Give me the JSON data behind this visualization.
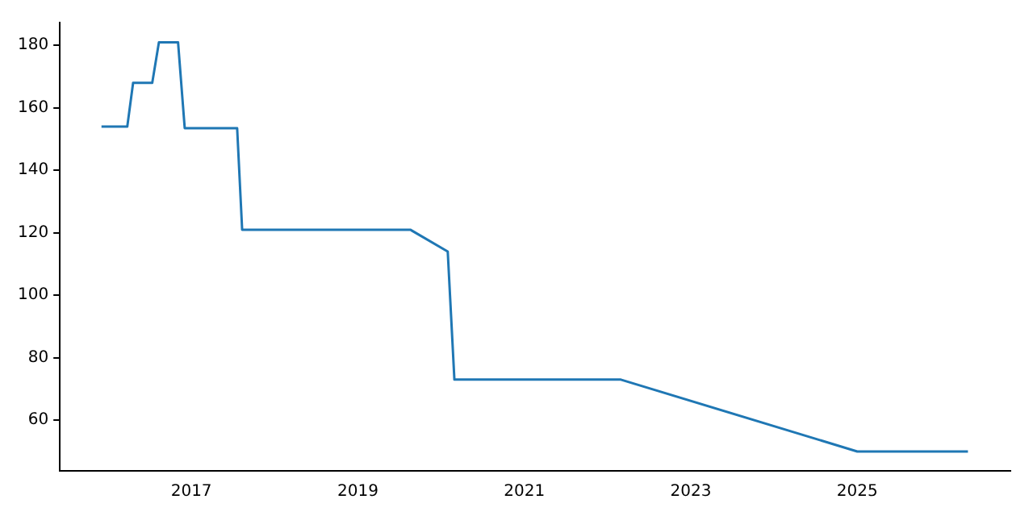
{
  "chart_data": {
    "type": "line",
    "x": [
      2015.92,
      2016.23,
      2016.3,
      2016.53,
      2016.61,
      2016.84,
      2016.92,
      2017.55,
      2017.61,
      2019.63,
      2020.08,
      2020.16,
      2022.16,
      2025.0,
      2026.33
    ],
    "series": [
      {
        "color": "#1f77b4",
        "values": [
          154,
          154,
          168,
          168,
          181,
          181,
          153.5,
          153.5,
          121,
          121,
          114,
          73,
          73,
          50,
          50
        ]
      }
    ],
    "xlim": [
      2015.42,
      2026.84
    ],
    "xticks": [
      2017,
      2019,
      2021,
      2023,
      2025
    ],
    "ylim": [
      43.8,
      187.3
    ],
    "yticks": [
      60,
      80,
      100,
      120,
      140,
      160,
      180
    ],
    "grid": false,
    "legend": false
  }
}
